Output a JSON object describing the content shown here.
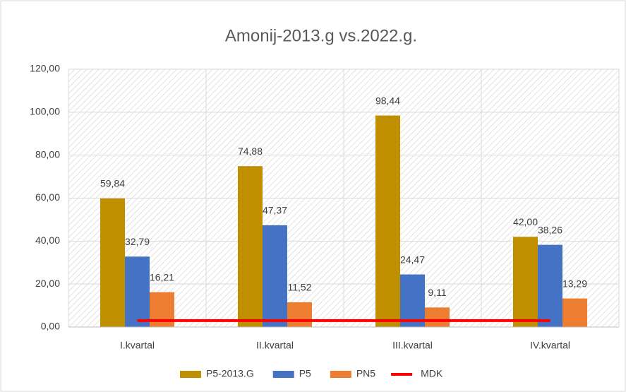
{
  "chart_data": {
    "type": "bar",
    "title": "Amonij-2013.g vs.2022.g.",
    "categories": [
      "I.kvartal",
      "II.kvartal",
      "III.kvartal",
      "IV.kvartal"
    ],
    "series": [
      {
        "name": "P5-2013.G",
        "color": "#bf8f00",
        "values": [
          59.84,
          74.88,
          98.44,
          42.0
        ],
        "value_labels": [
          "59,84",
          "74,88",
          "98,44",
          "42,00"
        ]
      },
      {
        "name": "P5",
        "color": "#4472c4",
        "values": [
          32.79,
          47.37,
          24.47,
          38.26
        ],
        "value_labels": [
          "32,79",
          "47,37",
          "24,47",
          "38,26"
        ]
      },
      {
        "name": "PN5",
        "color": "#ed7d31",
        "values": [
          16.21,
          11.52,
          9.11,
          13.29
        ],
        "value_labels": [
          "16,21",
          "11,52",
          "9,11",
          "13,29"
        ]
      },
      {
        "name": "MDK",
        "color": "#ff0000",
        "type": "line",
        "values": [
          3,
          3,
          3,
          3
        ]
      }
    ],
    "ylim": [
      0,
      120
    ],
    "yticks": [
      {
        "value": 0,
        "label": "0,00"
      },
      {
        "value": 20,
        "label": "20,00"
      },
      {
        "value": 40,
        "label": "40,00"
      },
      {
        "value": 60,
        "label": "60,00"
      },
      {
        "value": 80,
        "label": "80,00"
      },
      {
        "value": 100,
        "label": "100,00"
      },
      {
        "value": 120,
        "label": "120,00"
      }
    ],
    "grid": true,
    "legend": "bottom"
  }
}
